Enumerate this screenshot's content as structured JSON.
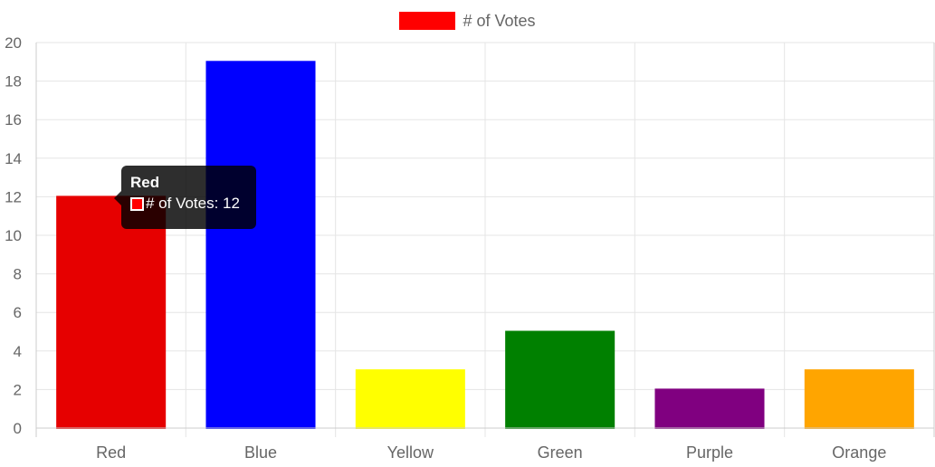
{
  "chart_data": {
    "type": "bar",
    "categories": [
      "Red",
      "Blue",
      "Yellow",
      "Green",
      "Purple",
      "Orange"
    ],
    "series": [
      {
        "name": "# of Votes",
        "values": [
          12,
          19,
          3,
          5,
          2,
          3
        ],
        "colors": [
          "#e60000",
          "#0000ff",
          "#ffff00",
          "#008000",
          "#800080",
          "#ffa500"
        ]
      }
    ],
    "title": "",
    "xlabel": "",
    "ylabel": "",
    "ylim": [
      0,
      20
    ],
    "yticks": [
      "0",
      "2",
      "4",
      "6",
      "8",
      "10",
      "12",
      "14",
      "16",
      "18",
      "20"
    ],
    "grid": true,
    "legend_position": "top-center",
    "legend_color": "#ff0000",
    "tooltip": {
      "title": "Red",
      "label": "# of Votes: 12",
      "swatch_color": "#ff0000"
    }
  }
}
